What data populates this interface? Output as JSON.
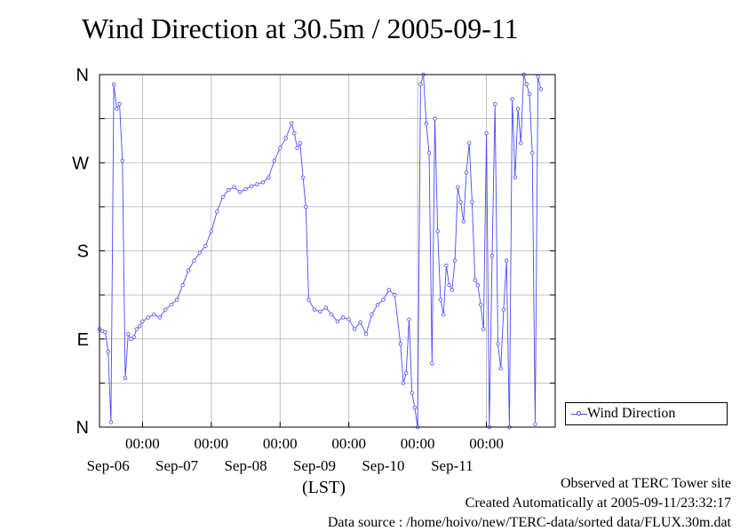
{
  "title": "Wind Direction at 30.5m / 2005-09-11",
  "xlabel": "(LST)",
  "footer": {
    "observed": "Observed at TERC Tower site",
    "created": "Created Automatically at 2005-09-11/23:32:17",
    "source": "Data source : /home/hoivo/new/TERC-data/sorted  data/FLUX.30m.dat"
  },
  "colors": {
    "series": "#4a4aff",
    "grid": "#b0b0b0",
    "axis": "#000000"
  },
  "chart_data": {
    "type": "scatter",
    "title": "Wind Direction at 30.5m / 2005-09-11",
    "xlabel": "(LST)",
    "ylabel": "",
    "xlim": [
      "2005-09-05 09:00",
      "2005-09-11 24:00"
    ],
    "ylim": [
      0,
      360
    ],
    "y_ticks": [
      {
        "value": 0,
        "label": "N"
      },
      {
        "value": 90,
        "label": "E"
      },
      {
        "value": 180,
        "label": "S"
      },
      {
        "value": 270,
        "label": "W"
      },
      {
        "value": 360,
        "label": "N"
      }
    ],
    "x_ticks": [
      {
        "value": "2005-09-06 00:00",
        "label": "00:00",
        "date": "Sep-06"
      },
      {
        "value": "2005-09-07 00:00",
        "label": "00:00",
        "date": "Sep-07"
      },
      {
        "value": "2005-09-08 00:00",
        "label": "00:00",
        "date": "Sep-08"
      },
      {
        "value": "2005-09-09 00:00",
        "label": "00:00",
        "date": "Sep-09"
      },
      {
        "value": "2005-09-10 00:00",
        "label": "00:00",
        "date": "Sep-10"
      },
      {
        "value": "2005-09-11 00:00",
        "label": "00:00",
        "date": "Sep-11"
      }
    ],
    "grid": true,
    "legend_position": "right",
    "series": [
      {
        "name": "Wind Direction",
        "marker": "open-circle",
        "points": [
          [
            "2005-09-05 09:00",
            100
          ],
          [
            "2005-09-05 10:00",
            98
          ],
          [
            "2005-09-05 11:00",
            97
          ],
          [
            "2005-09-05 12:00",
            77
          ],
          [
            "2005-09-05 13:00",
            5
          ],
          [
            "2005-09-05 14:00",
            350
          ],
          [
            "2005-09-05 15:00",
            325
          ],
          [
            "2005-09-05 16:00",
            330
          ],
          [
            "2005-09-05 17:00",
            272
          ],
          [
            "2005-09-05 18:00",
            50
          ],
          [
            "2005-09-05 19:00",
            95
          ],
          [
            "2005-09-05 20:00",
            90
          ],
          [
            "2005-09-05 21:00",
            92
          ],
          [
            "2005-09-05 22:00",
            100
          ],
          [
            "2005-09-05 23:00",
            103
          ],
          [
            "2005-09-06 00:00",
            108
          ],
          [
            "2005-09-06 02:00",
            112
          ],
          [
            "2005-09-06 04:00",
            115
          ],
          [
            "2005-09-06 06:00",
            112
          ],
          [
            "2005-09-06 08:00",
            120
          ],
          [
            "2005-09-06 10:00",
            125
          ],
          [
            "2005-09-06 12:00",
            130
          ],
          [
            "2005-09-06 14:00",
            145
          ],
          [
            "2005-09-06 16:00",
            160
          ],
          [
            "2005-09-06 18:00",
            170
          ],
          [
            "2005-09-06 20:00",
            178
          ],
          [
            "2005-09-06 22:00",
            185
          ],
          [
            "2005-09-07 00:00",
            200
          ],
          [
            "2005-09-07 02:00",
            220
          ],
          [
            "2005-09-07 04:00",
            235
          ],
          [
            "2005-09-07 06:00",
            242
          ],
          [
            "2005-09-07 08:00",
            245
          ],
          [
            "2005-09-07 10:00",
            240
          ],
          [
            "2005-09-07 12:00",
            243
          ],
          [
            "2005-09-07 14:00",
            246
          ],
          [
            "2005-09-07 16:00",
            248
          ],
          [
            "2005-09-07 18:00",
            250
          ],
          [
            "2005-09-07 20:00",
            255
          ],
          [
            "2005-09-07 22:00",
            272
          ],
          [
            "2005-09-08 00:00",
            285
          ],
          [
            "2005-09-08 02:00",
            295
          ],
          [
            "2005-09-08 04:00",
            310
          ],
          [
            "2005-09-08 05:00",
            300
          ],
          [
            "2005-09-08 06:00",
            285
          ],
          [
            "2005-09-08 07:00",
            290
          ],
          [
            "2005-09-08 08:00",
            255
          ],
          [
            "2005-09-08 09:00",
            225
          ],
          [
            "2005-09-08 10:00",
            130
          ],
          [
            "2005-09-08 12:00",
            120
          ],
          [
            "2005-09-08 14:00",
            118
          ],
          [
            "2005-09-08 16:00",
            122
          ],
          [
            "2005-09-08 18:00",
            115
          ],
          [
            "2005-09-08 20:00",
            108
          ],
          [
            "2005-09-08 22:00",
            112
          ],
          [
            "2005-09-09 00:00",
            110
          ],
          [
            "2005-09-09 02:00",
            100
          ],
          [
            "2005-09-09 04:00",
            107
          ],
          [
            "2005-09-09 06:00",
            95
          ],
          [
            "2005-09-09 08:00",
            115
          ],
          [
            "2005-09-09 10:00",
            125
          ],
          [
            "2005-09-09 12:00",
            130
          ],
          [
            "2005-09-09 14:00",
            140
          ],
          [
            "2005-09-09 16:00",
            135
          ],
          [
            "2005-09-09 18:00",
            85
          ],
          [
            "2005-09-09 19:00",
            45
          ],
          [
            "2005-09-09 20:00",
            55
          ],
          [
            "2005-09-09 21:00",
            110
          ],
          [
            "2005-09-09 22:00",
            35
          ],
          [
            "2005-09-09 23:00",
            20
          ],
          [
            "2005-09-10 00:00",
            0
          ],
          [
            "2005-09-10 01:00",
            350
          ],
          [
            "2005-09-10 02:00",
            360
          ],
          [
            "2005-09-10 03:00",
            310
          ],
          [
            "2005-09-10 04:00",
            280
          ],
          [
            "2005-09-10 05:00",
            65
          ],
          [
            "2005-09-10 06:00",
            315
          ],
          [
            "2005-09-10 07:00",
            200
          ],
          [
            "2005-09-10 08:00",
            130
          ],
          [
            "2005-09-10 09:00",
            115
          ],
          [
            "2005-09-10 10:00",
            165
          ],
          [
            "2005-09-10 11:00",
            145
          ],
          [
            "2005-09-10 12:00",
            140
          ],
          [
            "2005-09-10 13:00",
            170
          ],
          [
            "2005-09-10 14:00",
            245
          ],
          [
            "2005-09-10 15:00",
            230
          ],
          [
            "2005-09-10 16:00",
            210
          ],
          [
            "2005-09-10 17:00",
            260
          ],
          [
            "2005-09-10 18:00",
            290
          ],
          [
            "2005-09-10 19:00",
            230
          ],
          [
            "2005-09-10 20:00",
            150
          ],
          [
            "2005-09-10 21:00",
            145
          ],
          [
            "2005-09-10 22:00",
            125
          ],
          [
            "2005-09-10 23:00",
            100
          ],
          [
            "2005-09-11 00:00",
            300
          ],
          [
            "2005-09-11 01:00",
            0
          ],
          [
            "2005-09-11 02:00",
            175
          ],
          [
            "2005-09-11 03:00",
            330
          ],
          [
            "2005-09-11 04:00",
            85
          ],
          [
            "2005-09-11 05:00",
            60
          ],
          [
            "2005-09-11 06:00",
            120
          ],
          [
            "2005-09-11 07:00",
            170
          ],
          [
            "2005-09-11 08:00",
            0
          ],
          [
            "2005-09-11 09:00",
            335
          ],
          [
            "2005-09-11 10:00",
            255
          ],
          [
            "2005-09-11 11:00",
            325
          ],
          [
            "2005-09-11 12:00",
            290
          ],
          [
            "2005-09-11 13:00",
            360
          ],
          [
            "2005-09-11 14:00",
            350
          ],
          [
            "2005-09-11 15:00",
            340
          ],
          [
            "2005-09-11 16:00",
            280
          ],
          [
            "2005-09-11 17:00",
            3
          ],
          [
            "2005-09-11 18:00",
            358
          ],
          [
            "2005-09-11 19:00",
            345
          ]
        ]
      }
    ]
  }
}
